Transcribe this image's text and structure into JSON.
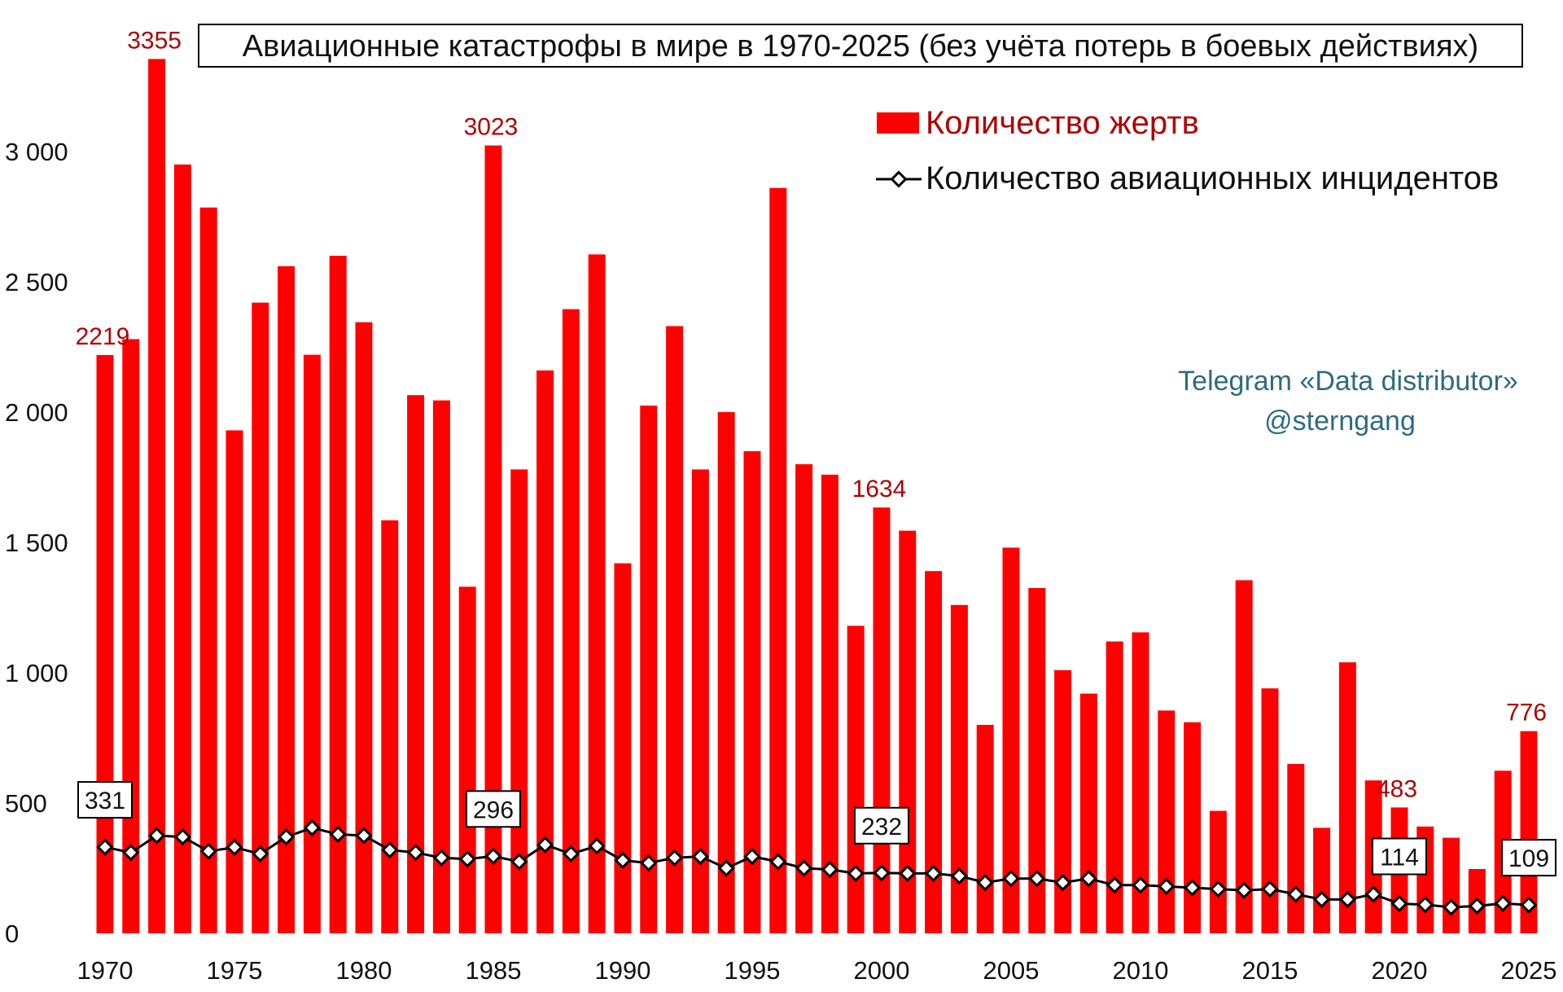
{
  "chart_data": {
    "type": "bar",
    "title": "Авиационные катастрофы в мире в 1970-2025 (без учёта потерь в боевых действиях)",
    "xlabel": "",
    "ylabel": "",
    "ylim": [
      0,
      3400
    ],
    "yticks": [
      0,
      500,
      1000,
      1500,
      2000,
      2500,
      3000
    ],
    "ytick_labels": [
      "0",
      "500",
      "1 000",
      "1 500",
      "2 000",
      "2 500",
      "3 000"
    ],
    "xtick_labels": [
      "1970",
      "1975",
      "1980",
      "1985",
      "1990",
      "1995",
      "2000",
      "2005",
      "2010",
      "2015",
      "2020",
      "2025"
    ],
    "grid": false,
    "legend_position": "top-right",
    "x": [
      1970,
      1971,
      1972,
      1973,
      1974,
      1975,
      1976,
      1977,
      1978,
      1979,
      1980,
      1981,
      1982,
      1983,
      1984,
      1985,
      1986,
      1987,
      1988,
      1989,
      1990,
      1991,
      1992,
      1993,
      1994,
      1995,
      1996,
      1997,
      1998,
      1999,
      2000,
      2001,
      2002,
      2003,
      2004,
      2005,
      2006,
      2007,
      2008,
      2009,
      2010,
      2011,
      2012,
      2013,
      2014,
      2015,
      2016,
      2017,
      2018,
      2019,
      2020,
      2021,
      2022,
      2023,
      2024,
      2025
    ],
    "series": [
      {
        "name": "Количество жертв",
        "kind": "bar",
        "color": "#ff0000",
        "values": [
          2219,
          2280,
          3355,
          2950,
          2785,
          1930,
          2420,
          2560,
          2220,
          2600,
          2345,
          1585,
          2065,
          2045,
          1330,
          3023,
          1780,
          2160,
          2395,
          2605,
          1420,
          2025,
          2330,
          1780,
          2000,
          1850,
          2860,
          1800,
          1760,
          1180,
          1634,
          1545,
          1390,
          1260,
          800,
          1480,
          1325,
          1010,
          920,
          1120,
          1155,
          855,
          810,
          470,
          1355,
          940,
          650,
          405,
          1040,
          587,
          483,
          410,
          367,
          247,
          624,
          776
        ],
        "value_labels": {
          "1970": "2219",
          "1972": "3355",
          "1985": "3023",
          "2000": "1634",
          "2020": "483",
          "2025": "776"
        }
      },
      {
        "name": "Количество авиационных инцидентов",
        "kind": "line",
        "color": "#000000",
        "marker_fill": "#ffffff",
        "values": [
          331,
          310,
          375,
          370,
          315,
          330,
          305,
          370,
          405,
          380,
          375,
          320,
          310,
          290,
          285,
          296,
          275,
          340,
          305,
          335,
          280,
          270,
          290,
          295,
          250,
          295,
          275,
          250,
          245,
          230,
          232,
          230,
          230,
          220,
          195,
          210,
          210,
          195,
          210,
          185,
          185,
          180,
          175,
          170,
          165,
          170,
          150,
          130,
          130,
          150,
          114,
          110,
          100,
          105,
          115,
          109
        ],
        "value_labels": {
          "1970": "331",
          "1985": "296",
          "2000": "232",
          "2020": "114",
          "2025": "109"
        }
      }
    ]
  },
  "watermark": {
    "line1": "Telegram «Data distributor»",
    "line2": "@sterngang"
  }
}
